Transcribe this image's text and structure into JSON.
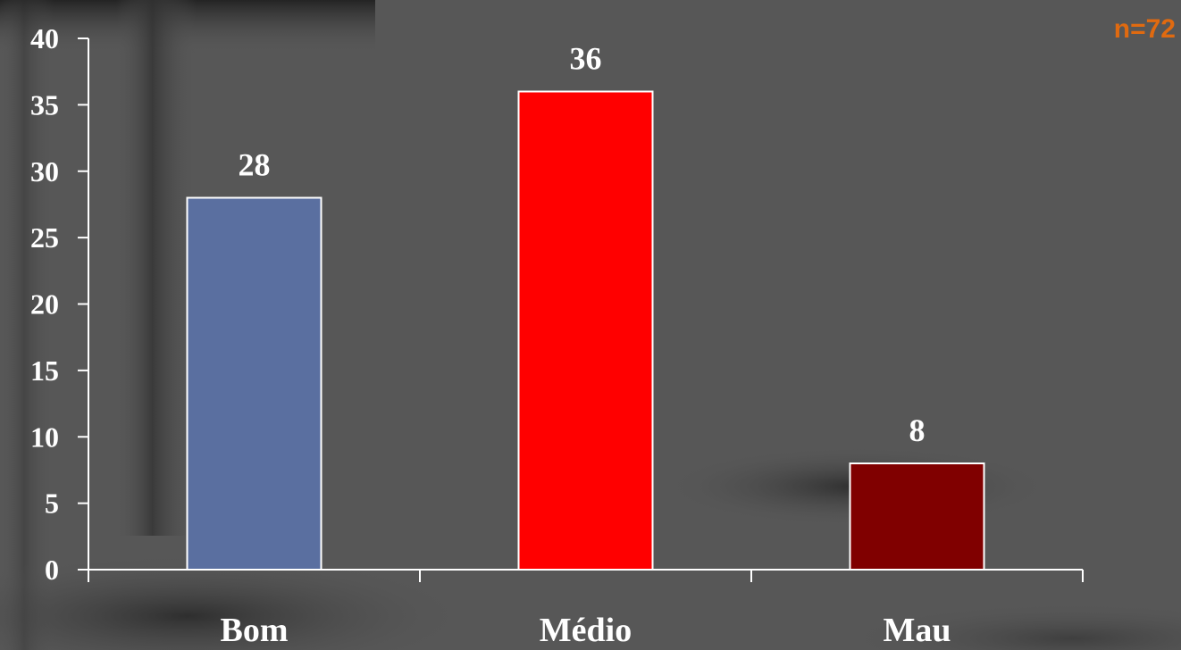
{
  "annotation": {
    "text": "n=72",
    "color": "#e06a10"
  },
  "colors": {
    "background": "#575757",
    "axis": "#ffffff",
    "bar_border": "#ffffff"
  },
  "chart_data": {
    "type": "bar",
    "categories": [
      "Bom",
      "Médio",
      "Mau"
    ],
    "values": [
      28,
      36,
      8
    ],
    "bar_colors": [
      "#5a6fa0",
      "#ff0000",
      "#800000"
    ],
    "ylim": [
      0,
      40
    ],
    "yticks": [
      0,
      5,
      10,
      15,
      20,
      25,
      30,
      35,
      40
    ],
    "data_labels": [
      "28",
      "36",
      "8"
    ],
    "title": "",
    "xlabel": "",
    "ylabel": "",
    "grid": false,
    "legend": "none"
  }
}
